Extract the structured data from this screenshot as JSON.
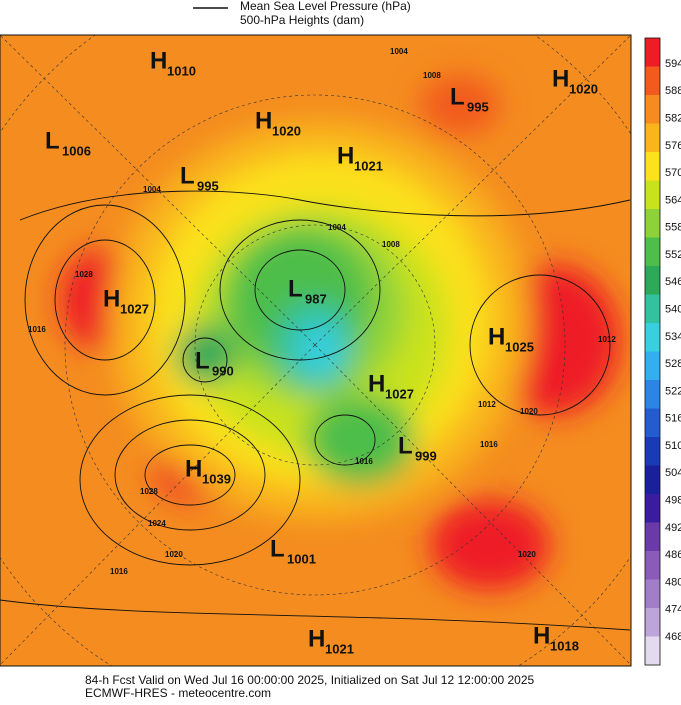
{
  "legend": {
    "line_label": "Mean Sea Level Pressure (hPa)",
    "fill_label": "500-hPa Heights (dam)"
  },
  "centers": [
    {
      "letter": "H",
      "value": 1010
    },
    {
      "letter": "L",
      "value": 1006
    },
    {
      "letter": "H",
      "value": 1020
    },
    {
      "letter": "H",
      "value": 1021
    },
    {
      "letter": "L",
      "value": 995
    },
    {
      "letter": "L",
      "value": 995
    },
    {
      "letter": "H",
      "value": 1020
    },
    {
      "letter": "H",
      "value": 1027
    },
    {
      "letter": "L",
      "value": 987
    },
    {
      "letter": "L",
      "value": 990
    },
    {
      "letter": "H",
      "value": 1025
    },
    {
      "letter": "H",
      "value": 1027
    },
    {
      "letter": "L",
      "value": 999
    },
    {
      "letter": "H",
      "value": 1039
    },
    {
      "letter": "L",
      "value": 1001
    },
    {
      "letter": "H",
      "value": 1021
    },
    {
      "letter": "H",
      "value": 1018
    }
  ],
  "isobar_labels": [
    1004,
    1008,
    1004,
    1008,
    1004,
    1012,
    1012,
    1016,
    1020,
    1016,
    1028,
    1016,
    1028,
    1024,
    1020,
    1016,
    1020
  ],
  "colorbar": {
    "levels": [
      594,
      588,
      582,
      576,
      570,
      564,
      558,
      552,
      546,
      540,
      534,
      528,
      522,
      516,
      510,
      504,
      498,
      492,
      486,
      480,
      474,
      468
    ],
    "colors": [
      "#ee1c25",
      "#f25a1e",
      "#f68c1f",
      "#f9b51b",
      "#fbe11e",
      "#c9e21e",
      "#8ed23a",
      "#4dbe4a",
      "#2ea95a",
      "#33c2a0",
      "#38d0e0",
      "#33aff0",
      "#2c84e4",
      "#245ccf",
      "#1b3ab6",
      "#1a1f9c",
      "#3a1c9e",
      "#6a3ba8",
      "#8a5bb8",
      "#a27ec9",
      "#bea5d9",
      "#e4daf0"
    ]
  },
  "footer": {
    "line1": "84-h Fcst Valid on Wed Jul 16 00:00:00 2025, Initialized on Sat Jul 12 12:00:00 2025",
    "line2": "ECMWF-HRES  - meteocentre.com"
  }
}
